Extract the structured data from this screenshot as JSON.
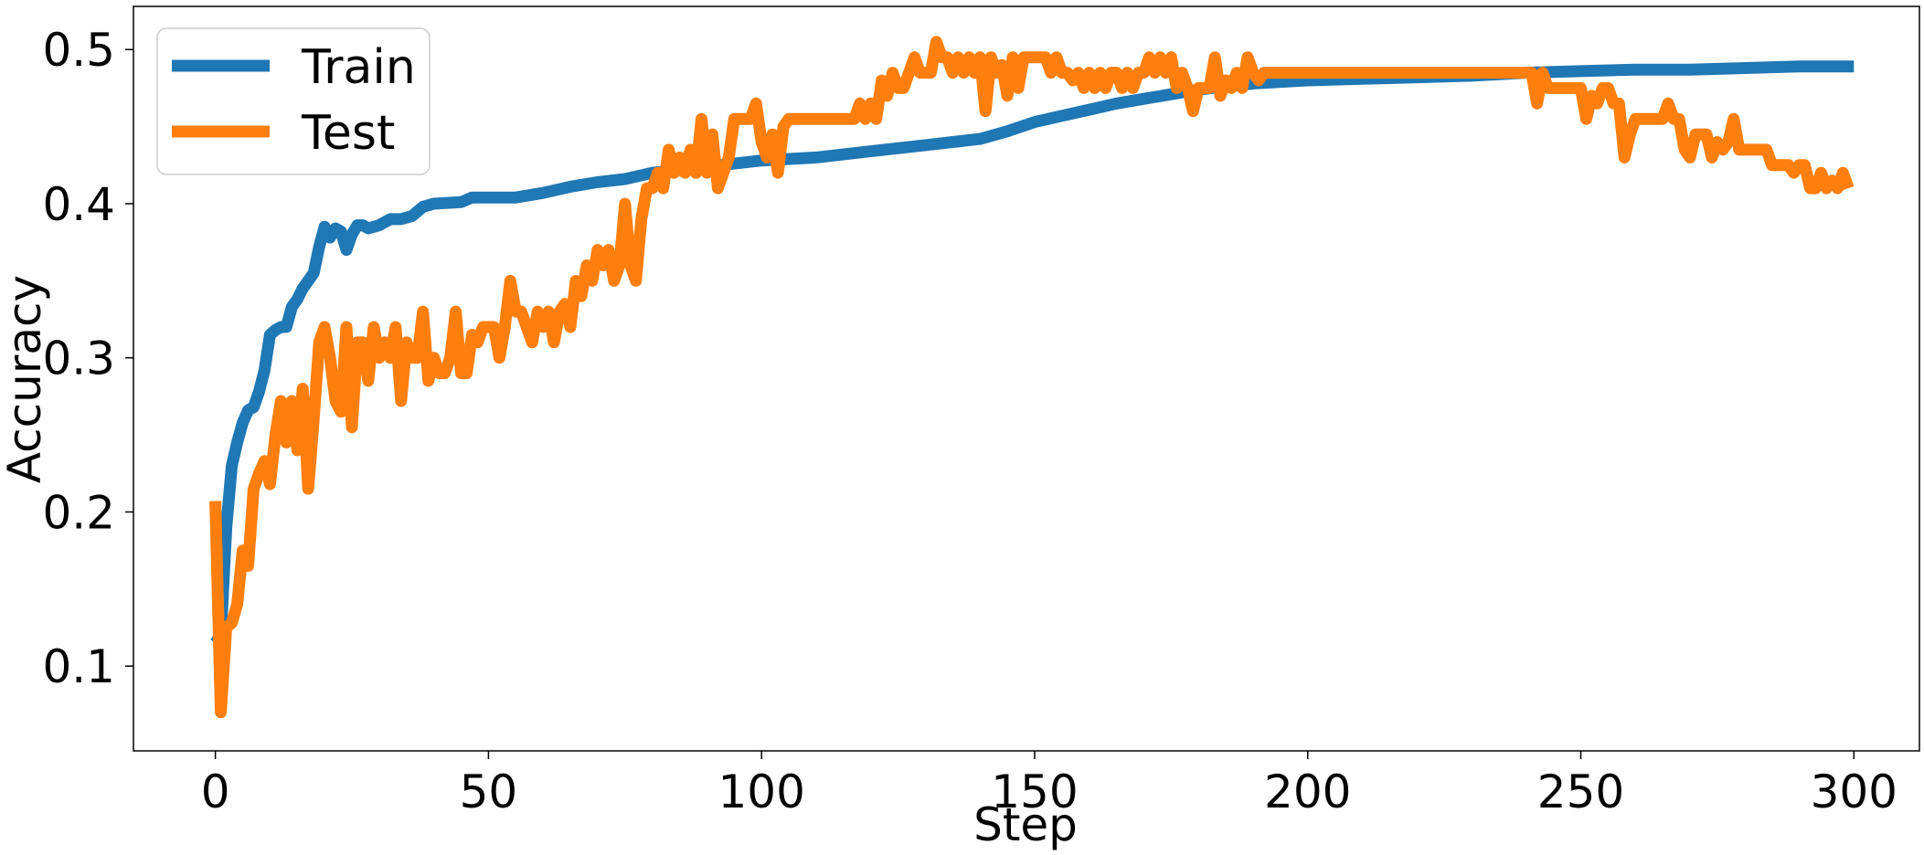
{
  "chart_data": {
    "type": "line",
    "xlabel": "Step",
    "ylabel": "Accuracy",
    "xlim": [
      -15,
      312
    ],
    "ylim": [
      0.045,
      0.528
    ],
    "xticks": [
      0,
      50,
      100,
      150,
      200,
      250,
      300
    ],
    "xtick_labels": [
      "0",
      "50",
      "100",
      "150",
      "200",
      "250",
      "300"
    ],
    "yticks": [
      0.1,
      0.2,
      0.3,
      0.4,
      0.5
    ],
    "ytick_labels": [
      "0.1",
      "0.2",
      "0.3",
      "0.4",
      "0.5"
    ],
    "grid": false,
    "legend_position": "top-left",
    "series": [
      {
        "name": "Train",
        "color": "#1f77b4",
        "points": [
          [
            0,
            0.115
          ],
          [
            1,
            0.12
          ],
          [
            2,
            0.19
          ],
          [
            3,
            0.23
          ],
          [
            4,
            0.245
          ],
          [
            5,
            0.258
          ],
          [
            6,
            0.266
          ],
          [
            7,
            0.268
          ],
          [
            8,
            0.278
          ],
          [
            9,
            0.292
          ],
          [
            10,
            0.315
          ],
          [
            11,
            0.318
          ],
          [
            12,
            0.32
          ],
          [
            13,
            0.32
          ],
          [
            14,
            0.333
          ],
          [
            15,
            0.338
          ],
          [
            16,
            0.345
          ],
          [
            17,
            0.35
          ],
          [
            18,
            0.355
          ],
          [
            19,
            0.372
          ],
          [
            20,
            0.385
          ],
          [
            21,
            0.378
          ],
          [
            22,
            0.384
          ],
          [
            23,
            0.382
          ],
          [
            24,
            0.37
          ],
          [
            25,
            0.38
          ],
          [
            26,
            0.386
          ],
          [
            27,
            0.386
          ],
          [
            28,
            0.384
          ],
          [
            30,
            0.386
          ],
          [
            32,
            0.39
          ],
          [
            34,
            0.39
          ],
          [
            36,
            0.392
          ],
          [
            38,
            0.398
          ],
          [
            40,
            0.4
          ],
          [
            45,
            0.401
          ],
          [
            47,
            0.404
          ],
          [
            50,
            0.404
          ],
          [
            55,
            0.404
          ],
          [
            60,
            0.407
          ],
          [
            65,
            0.411
          ],
          [
            70,
            0.414
          ],
          [
            75,
            0.416
          ],
          [
            80,
            0.42
          ],
          [
            85,
            0.422
          ],
          [
            90,
            0.424
          ],
          [
            95,
            0.426
          ],
          [
            100,
            0.428
          ],
          [
            110,
            0.43
          ],
          [
            120,
            0.434
          ],
          [
            130,
            0.438
          ],
          [
            135,
            0.44
          ],
          [
            140,
            0.442
          ],
          [
            145,
            0.447
          ],
          [
            150,
            0.453
          ],
          [
            155,
            0.457
          ],
          [
            160,
            0.461
          ],
          [
            165,
            0.465
          ],
          [
            170,
            0.468
          ],
          [
            175,
            0.471
          ],
          [
            180,
            0.474
          ],
          [
            190,
            0.478
          ],
          [
            200,
            0.48
          ],
          [
            210,
            0.481
          ],
          [
            220,
            0.482
          ],
          [
            230,
            0.483
          ],
          [
            240,
            0.485
          ],
          [
            250,
            0.486
          ],
          [
            260,
            0.487
          ],
          [
            270,
            0.487
          ],
          [
            280,
            0.488
          ],
          [
            290,
            0.489
          ],
          [
            300,
            0.489
          ]
        ]
      },
      {
        "name": "Test",
        "color": "#ff7f0e",
        "points": [
          [
            0,
            0.207
          ],
          [
            1,
            0.07
          ],
          [
            2,
            0.125
          ],
          [
            3,
            0.128
          ],
          [
            4,
            0.14
          ],
          [
            5,
            0.175
          ],
          [
            6,
            0.165
          ],
          [
            7,
            0.215
          ],
          [
            8,
            0.225
          ],
          [
            9,
            0.233
          ],
          [
            10,
            0.218
          ],
          [
            11,
            0.25
          ],
          [
            12,
            0.272
          ],
          [
            13,
            0.245
          ],
          [
            14,
            0.272
          ],
          [
            15,
            0.24
          ],
          [
            16,
            0.28
          ],
          [
            17,
            0.215
          ],
          [
            18,
            0.26
          ],
          [
            19,
            0.31
          ],
          [
            20,
            0.32
          ],
          [
            21,
            0.3
          ],
          [
            22,
            0.272
          ],
          [
            23,
            0.265
          ],
          [
            24,
            0.32
          ],
          [
            25,
            0.255
          ],
          [
            26,
            0.31
          ],
          [
            27,
            0.31
          ],
          [
            28,
            0.285
          ],
          [
            29,
            0.32
          ],
          [
            30,
            0.3
          ],
          [
            31,
            0.31
          ],
          [
            32,
            0.3
          ],
          [
            33,
            0.32
          ],
          [
            34,
            0.272
          ],
          [
            35,
            0.31
          ],
          [
            36,
            0.3
          ],
          [
            37,
            0.3
          ],
          [
            38,
            0.33
          ],
          [
            39,
            0.285
          ],
          [
            40,
            0.3
          ],
          [
            41,
            0.29
          ],
          [
            42,
            0.29
          ],
          [
            43,
            0.3
          ],
          [
            44,
            0.33
          ],
          [
            45,
            0.29
          ],
          [
            46,
            0.29
          ],
          [
            47,
            0.315
          ],
          [
            48,
            0.31
          ],
          [
            49,
            0.32
          ],
          [
            50,
            0.32
          ],
          [
            51,
            0.32
          ],
          [
            52,
            0.3
          ],
          [
            53,
            0.32
          ],
          [
            54,
            0.35
          ],
          [
            55,
            0.33
          ],
          [
            56,
            0.33
          ],
          [
            57,
            0.32
          ],
          [
            58,
            0.31
          ],
          [
            59,
            0.33
          ],
          [
            60,
            0.32
          ],
          [
            61,
            0.33
          ],
          [
            62,
            0.31
          ],
          [
            63,
            0.33
          ],
          [
            64,
            0.335
          ],
          [
            65,
            0.32
          ],
          [
            66,
            0.35
          ],
          [
            67,
            0.34
          ],
          [
            68,
            0.36
          ],
          [
            69,
            0.35
          ],
          [
            70,
            0.37
          ],
          [
            71,
            0.36
          ],
          [
            72,
            0.37
          ],
          [
            73,
            0.35
          ],
          [
            74,
            0.36
          ],
          [
            75,
            0.4
          ],
          [
            76,
            0.36
          ],
          [
            77,
            0.35
          ],
          [
            78,
            0.39
          ],
          [
            79,
            0.41
          ],
          [
            80,
            0.41
          ],
          [
            81,
            0.42
          ],
          [
            82,
            0.41
          ],
          [
            83,
            0.435
          ],
          [
            84,
            0.42
          ],
          [
            85,
            0.43
          ],
          [
            86,
            0.42
          ],
          [
            87,
            0.435
          ],
          [
            88,
            0.42
          ],
          [
            89,
            0.455
          ],
          [
            90,
            0.42
          ],
          [
            91,
            0.445
          ],
          [
            92,
            0.41
          ],
          [
            93,
            0.42
          ],
          [
            94,
            0.43
          ],
          [
            95,
            0.455
          ],
          [
            96,
            0.455
          ],
          [
            97,
            0.455
          ],
          [
            98,
            0.455
          ],
          [
            99,
            0.465
          ],
          [
            100,
            0.44
          ],
          [
            101,
            0.43
          ],
          [
            102,
            0.445
          ],
          [
            103,
            0.42
          ],
          [
            104,
            0.45
          ],
          [
            105,
            0.455
          ],
          [
            110,
            0.455
          ],
          [
            115,
            0.455
          ],
          [
            117,
            0.455
          ],
          [
            118,
            0.465
          ],
          [
            119,
            0.455
          ],
          [
            120,
            0.465
          ],
          [
            121,
            0.455
          ],
          [
            122,
            0.48
          ],
          [
            123,
            0.47
          ],
          [
            124,
            0.485
          ],
          [
            125,
            0.475
          ],
          [
            126,
            0.475
          ],
          [
            127,
            0.485
          ],
          [
            128,
            0.495
          ],
          [
            129,
            0.485
          ],
          [
            130,
            0.485
          ],
          [
            131,
            0.485
          ],
          [
            132,
            0.505
          ],
          [
            133,
            0.495
          ],
          [
            134,
            0.495
          ],
          [
            135,
            0.485
          ],
          [
            136,
            0.495
          ],
          [
            137,
            0.485
          ],
          [
            138,
            0.495
          ],
          [
            139,
            0.485
          ],
          [
            140,
            0.495
          ],
          [
            141,
            0.46
          ],
          [
            142,
            0.495
          ],
          [
            143,
            0.485
          ],
          [
            144,
            0.49
          ],
          [
            145,
            0.47
          ],
          [
            146,
            0.495
          ],
          [
            147,
            0.475
          ],
          [
            148,
            0.495
          ],
          [
            150,
            0.495
          ],
          [
            152,
            0.495
          ],
          [
            153,
            0.485
          ],
          [
            154,
            0.495
          ],
          [
            155,
            0.485
          ],
          [
            156,
            0.485
          ],
          [
            157,
            0.48
          ],
          [
            158,
            0.485
          ],
          [
            159,
            0.475
          ],
          [
            160,
            0.485
          ],
          [
            161,
            0.475
          ],
          [
            162,
            0.485
          ],
          [
            163,
            0.475
          ],
          [
            164,
            0.485
          ],
          [
            165,
            0.485
          ],
          [
            166,
            0.475
          ],
          [
            167,
            0.485
          ],
          [
            168,
            0.475
          ],
          [
            169,
            0.485
          ],
          [
            170,
            0.485
          ],
          [
            171,
            0.495
          ],
          [
            172,
            0.485
          ],
          [
            173,
            0.495
          ],
          [
            174,
            0.485
          ],
          [
            175,
            0.495
          ],
          [
            176,
            0.475
          ],
          [
            177,
            0.485
          ],
          [
            178,
            0.475
          ],
          [
            179,
            0.46
          ],
          [
            180,
            0.475
          ],
          [
            181,
            0.475
          ],
          [
            182,
            0.475
          ],
          [
            183,
            0.495
          ],
          [
            184,
            0.47
          ],
          [
            185,
            0.48
          ],
          [
            186,
            0.475
          ],
          [
            187,
            0.485
          ],
          [
            188,
            0.475
          ],
          [
            189,
            0.495
          ],
          [
            190,
            0.485
          ],
          [
            191,
            0.48
          ],
          [
            192,
            0.485
          ],
          [
            200,
            0.485
          ],
          [
            210,
            0.485
          ],
          [
            220,
            0.485
          ],
          [
            230,
            0.485
          ],
          [
            240,
            0.485
          ],
          [
            241,
            0.485
          ],
          [
            242,
            0.465
          ],
          [
            243,
            0.485
          ],
          [
            244,
            0.475
          ],
          [
            245,
            0.475
          ],
          [
            250,
            0.475
          ],
          [
            251,
            0.455
          ],
          [
            252,
            0.47
          ],
          [
            253,
            0.465
          ],
          [
            254,
            0.475
          ],
          [
            255,
            0.475
          ],
          [
            256,
            0.465
          ],
          [
            257,
            0.465
          ],
          [
            258,
            0.43
          ],
          [
            259,
            0.445
          ],
          [
            260,
            0.455
          ],
          [
            265,
            0.455
          ],
          [
            266,
            0.465
          ],
          [
            267,
            0.455
          ],
          [
            268,
            0.455
          ],
          [
            269,
            0.435
          ],
          [
            270,
            0.43
          ],
          [
            271,
            0.445
          ],
          [
            272,
            0.445
          ],
          [
            273,
            0.445
          ],
          [
            274,
            0.43
          ],
          [
            275,
            0.44
          ],
          [
            276,
            0.435
          ],
          [
            277,
            0.44
          ],
          [
            278,
            0.455
          ],
          [
            279,
            0.435
          ],
          [
            280,
            0.435
          ],
          [
            284,
            0.435
          ],
          [
            285,
            0.425
          ],
          [
            288,
            0.425
          ],
          [
            289,
            0.42
          ],
          [
            290,
            0.425
          ],
          [
            291,
            0.425
          ],
          [
            292,
            0.41
          ],
          [
            293,
            0.41
          ],
          [
            294,
            0.42
          ],
          [
            295,
            0.41
          ],
          [
            296,
            0.415
          ],
          [
            297,
            0.41
          ],
          [
            298,
            0.42
          ],
          [
            299,
            0.41
          ]
        ]
      }
    ]
  }
}
